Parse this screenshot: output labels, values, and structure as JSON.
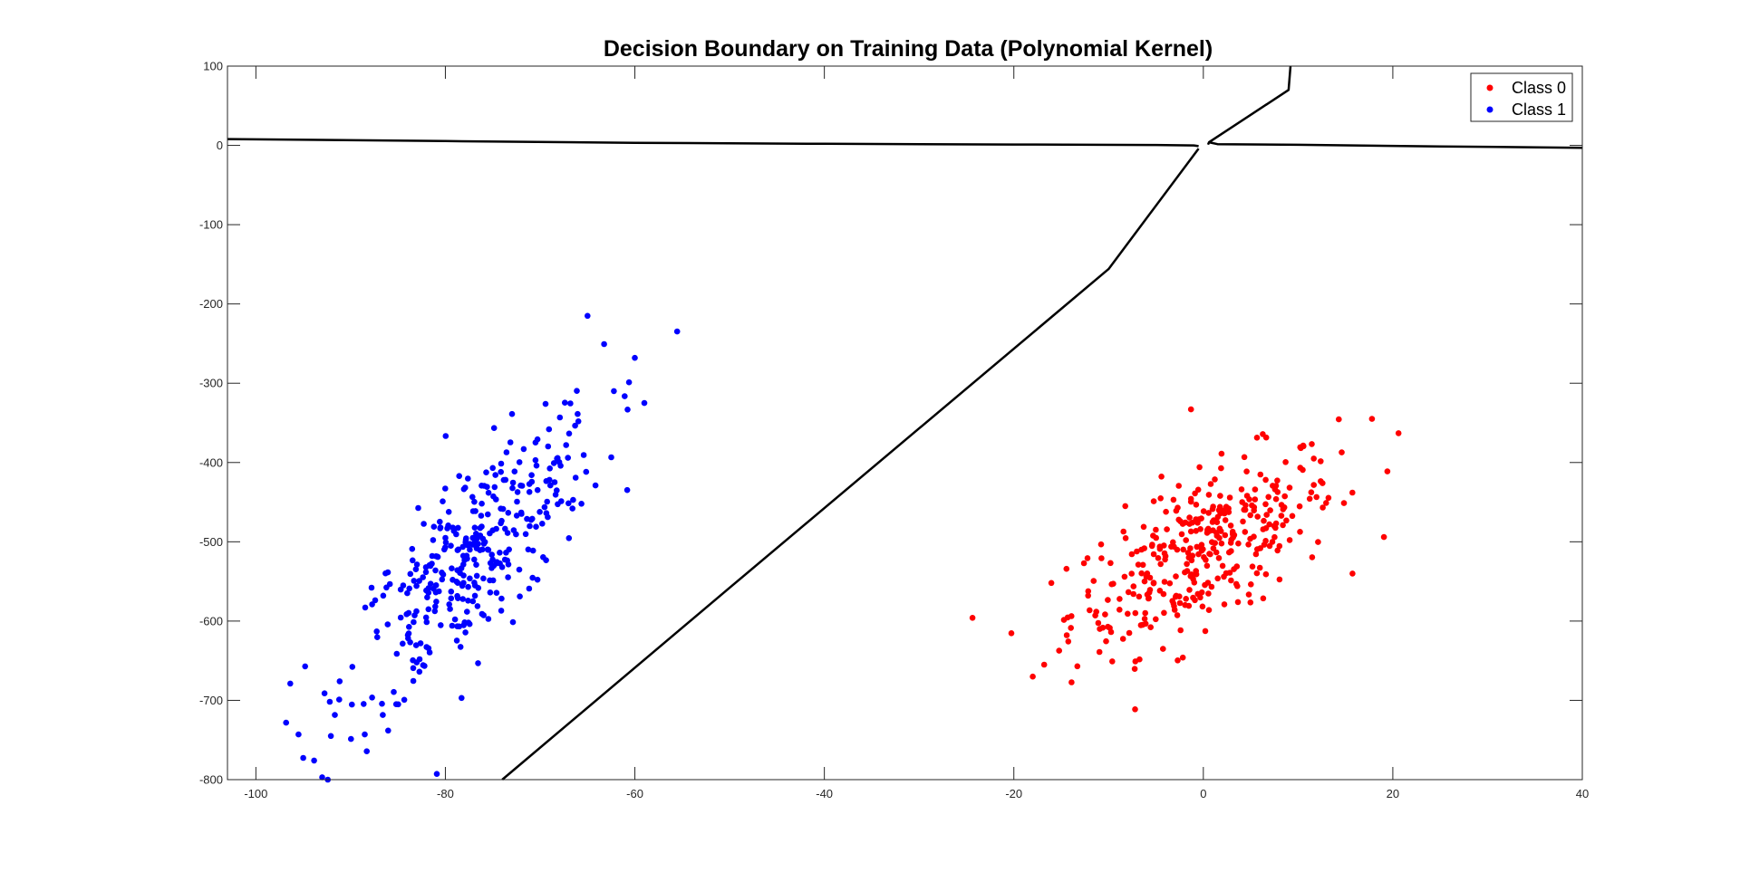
{
  "chart_data": {
    "type": "scatter",
    "title": "Decision Boundary on Training Data (Polynomial Kernel)",
    "xlabel": "",
    "ylabel": "",
    "xlim": [
      -103,
      40
    ],
    "ylim": [
      -800,
      100
    ],
    "xticks": [
      -100,
      -80,
      -60,
      -40,
      -20,
      0,
      20,
      40
    ],
    "yticks": [
      100,
      0,
      -100,
      -200,
      -300,
      -400,
      -500,
      -600,
      -700,
      -800
    ],
    "grid": false,
    "legend_position": "top-right",
    "series": [
      {
        "name": "Class 0",
        "color": "#ff0000",
        "distribution": {
          "mean": [
            0,
            -510
          ],
          "sd_x": 7,
          "sd_y": 62,
          "corr": 0.65,
          "n": 360
        },
        "extremes": [
          [
            -18,
            -670
          ],
          [
            -1.3,
            -333
          ],
          [
            20.6,
            -363
          ],
          [
            17.8,
            -345
          ],
          [
            -16.8,
            -655
          ]
        ]
      },
      {
        "name": "Class 1",
        "color": "#0000ff",
        "distribution": {
          "mean": [
            -77,
            -520
          ],
          "sd_x": 6.8,
          "sd_y": 95,
          "corr": 0.8,
          "n": 360
        },
        "extremes": [
          [
            -93,
            -797
          ],
          [
            -95.5,
            -743
          ],
          [
            -65,
            -215
          ],
          [
            -60,
            -268
          ],
          [
            -59,
            -325
          ]
        ]
      }
    ],
    "decision_boundary": {
      "color": "#000000",
      "segments": [
        [
          [
            -103,
            8
          ],
          [
            -80,
            5.4
          ],
          [
            -60,
            3.3
          ],
          [
            -40,
            2
          ],
          [
            -20,
            1.1
          ],
          [
            -5,
            0.5
          ],
          [
            -1,
            0
          ],
          [
            -0.5,
            -1
          ]
        ],
        [
          [
            -74,
            -800
          ],
          [
            -50,
            -558
          ],
          [
            -30,
            -357
          ],
          [
            -10,
            -156
          ],
          [
            -0.5,
            -4
          ]
        ],
        [
          [
            0.5,
            1
          ],
          [
            0.6,
            4
          ],
          [
            9,
            70
          ],
          [
            9.2,
            100
          ]
        ],
        [
          [
            0.6,
            4
          ],
          [
            1.5,
            1.6
          ],
          [
            10,
            0.8
          ],
          [
            25,
            -1.3
          ],
          [
            40,
            -3
          ]
        ]
      ]
    }
  }
}
